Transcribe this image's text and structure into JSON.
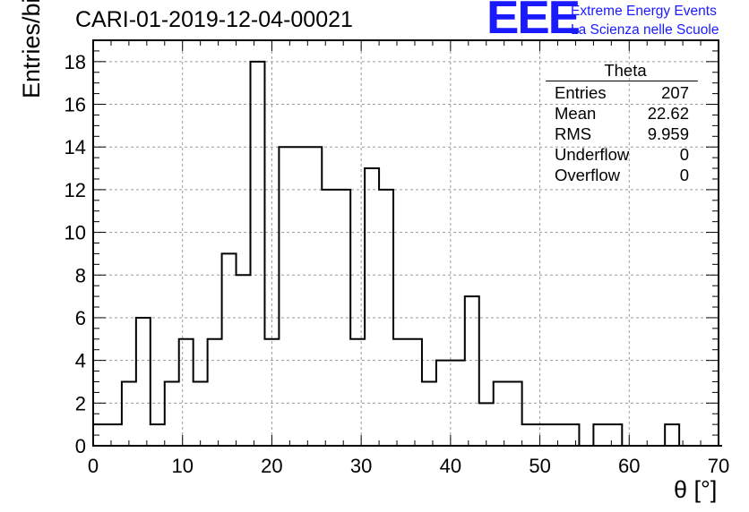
{
  "chart_data": {
    "type": "bar",
    "histogram": true,
    "title": "CARI-01-2019-12-04-00021",
    "xlabel": "θ [°]",
    "ylabel": "Entries/bin",
    "xlim": [
      0,
      70
    ],
    "ylim": [
      0,
      19
    ],
    "grid": true,
    "bin_width": 1.6,
    "x_ticks": [
      "0",
      "10",
      "20",
      "30",
      "40",
      "50",
      "60",
      "70"
    ],
    "y_ticks": [
      "0",
      "2",
      "4",
      "6",
      "8",
      "10",
      "12",
      "14",
      "16",
      "18"
    ],
    "values": [
      1,
      1,
      3,
      6,
      1,
      3,
      5,
      3,
      5,
      9,
      8,
      18,
      5,
      14,
      14,
      14,
      12,
      12,
      5,
      13,
      12,
      5,
      5,
      3,
      4,
      4,
      7,
      2,
      3,
      3,
      1,
      1,
      1,
      1,
      0,
      1,
      1,
      0,
      0,
      0,
      1,
      0,
      0,
      0
    ]
  },
  "stats": {
    "name": "Theta",
    "rows": [
      {
        "label": "Entries",
        "value": "207"
      },
      {
        "label": "Mean",
        "value": "22.62"
      },
      {
        "label": "RMS",
        "value": "9.959"
      },
      {
        "label": "Underflow",
        "value": "0"
      },
      {
        "label": "Overflow",
        "value": "0"
      }
    ]
  },
  "logo": {
    "mark": "EEE",
    "line1": "Extreme Energy Events",
    "line2": "La Scienza nelle Scuole",
    "color": "#1a1aff"
  }
}
